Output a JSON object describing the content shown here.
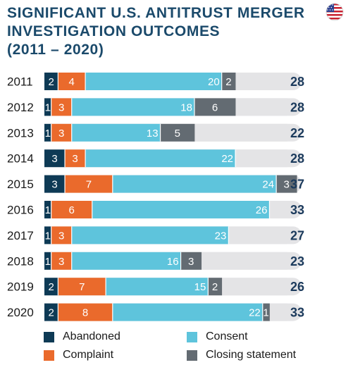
{
  "header": {
    "title_lines": [
      "SIGNIFICANT U.S. ANTITRUST MERGER",
      "INVESTIGATION OUTCOMES",
      "(2011 – 2020)"
    ],
    "flag_icon": "us-flag-icon"
  },
  "colors": {
    "abandoned": "#0e3a55",
    "complaint": "#ea6a2c",
    "consent": "#5ec4dc",
    "closing": "#636b72",
    "track": "#e4e4e6",
    "title": "#1b4a6b",
    "total": "#1b3a5c"
  },
  "chart_data": {
    "type": "bar",
    "orientation": "horizontal",
    "stacked": true,
    "categories": [
      "2011",
      "2012",
      "2013",
      "2014",
      "2015",
      "2016",
      "2017",
      "2018",
      "2019",
      "2020"
    ],
    "series": [
      {
        "name": "Abandoned",
        "key": "abandoned",
        "values": [
          2,
          1,
          1,
          3,
          3,
          1,
          1,
          1,
          2,
          2
        ]
      },
      {
        "name": "Complaint",
        "key": "complaint",
        "values": [
          4,
          3,
          3,
          3,
          7,
          6,
          3,
          3,
          7,
          8
        ]
      },
      {
        "name": "Consent",
        "key": "consent",
        "values": [
          20,
          18,
          13,
          22,
          24,
          26,
          23,
          16,
          15,
          22
        ]
      },
      {
        "name": "Closing statement",
        "key": "closing",
        "values": [
          2,
          6,
          5,
          0,
          3,
          0,
          0,
          3,
          2,
          1
        ]
      }
    ],
    "totals": [
      28,
      28,
      22,
      28,
      37,
      33,
      27,
      23,
      26,
      33
    ],
    "title": "SIGNIFICANT U.S. ANTITRUST MERGER INVESTIGATION OUTCOMES (2011 – 2020)",
    "legend_position": "bottom"
  },
  "legend": {
    "items": [
      {
        "label": "Abandoned",
        "key": "abandoned"
      },
      {
        "label": "Consent",
        "key": "consent"
      },
      {
        "label": "Complaint",
        "key": "complaint"
      },
      {
        "label": "Closing statement",
        "key": "closing"
      }
    ]
  }
}
